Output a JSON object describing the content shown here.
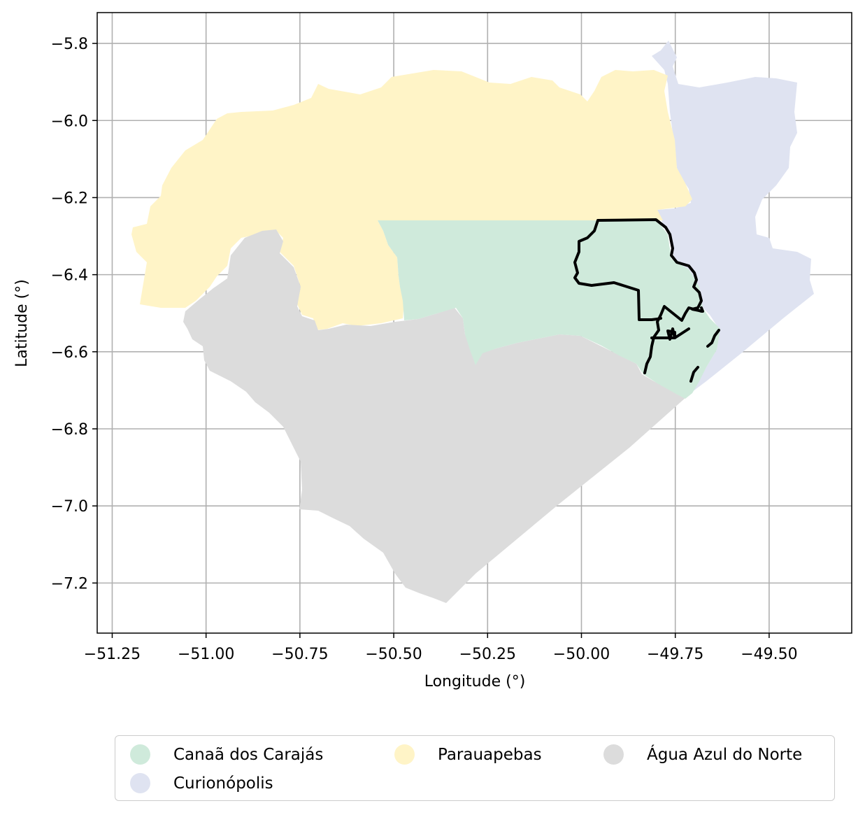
{
  "chart_data": {
    "type": "map",
    "xlabel": "Longitude (°)",
    "ylabel": "Latitude (°)",
    "xlim": [
      -51.29,
      -49.28
    ],
    "ylim": [
      -7.33,
      -5.72
    ],
    "xticks": [
      -51.25,
      -51.0,
      -50.75,
      -50.5,
      -50.25,
      -50.0,
      -49.75,
      -49.5
    ],
    "xtick_labels": [
      "−51.25",
      "−51.00",
      "−50.75",
      "−50.50",
      "−50.25",
      "−50.00",
      "−49.75",
      "−49.50"
    ],
    "yticks": [
      -5.8,
      -6.0,
      -6.2,
      -6.4,
      -6.6,
      -6.8,
      -7.0,
      -7.2
    ],
    "ytick_labels": [
      "−5.8",
      "−6.0",
      "−6.2",
      "−6.4",
      "−6.6",
      "−6.8",
      "−7.0",
      "−7.2"
    ],
    "grid": true,
    "legend_position": "bottom",
    "regions": [
      {
        "name": "Canaã dos Carajás",
        "color": "#cfeadb"
      },
      {
        "name": "Curionópolis",
        "color": "#dfe3f1"
      },
      {
        "name": "Parauapebas",
        "color": "#fff4c7"
      },
      {
        "name": "Água Azul do Norte",
        "color": "#dcdcdc"
      }
    ],
    "outline_color": "#000000"
  }
}
